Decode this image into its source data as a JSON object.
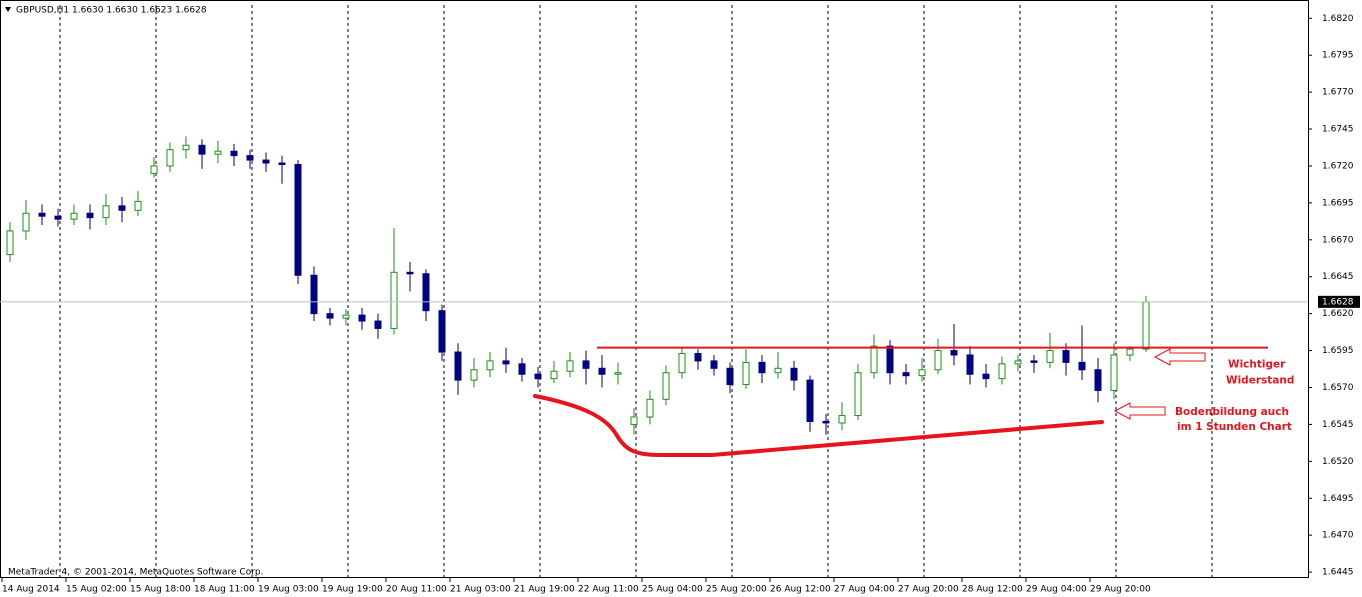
{
  "chart_data": {
    "type": "candlestick",
    "title": "GBPUSD,H1  1.6630 1.6630 1.6623 1.6628",
    "footer": "MetaTrader 4, © 2001-2014, MetaQuotes Software Corp.",
    "categories": [
      "14 Aug 2014",
      null,
      null,
      null,
      "15 Aug 02:00",
      null,
      null,
      null,
      "15 Aug 18:00",
      null,
      null,
      null,
      "18 Aug 11:00",
      null,
      null,
      null,
      "19 Aug 03:00",
      null,
      null,
      null,
      "19 Aug 19:00",
      null,
      null,
      null,
      "20 Aug 11:00",
      null,
      null,
      null,
      "21 Aug 03:00",
      null,
      null,
      null,
      "21 Aug 19:00",
      null,
      null,
      null,
      "22 Aug 11:00",
      null,
      null,
      null,
      "25 Aug 04:00",
      null,
      null,
      null,
      "25 Aug 20:00",
      null,
      null,
      null,
      "26 Aug 12:00",
      null,
      null,
      null,
      "27 Aug 04:00",
      null,
      null,
      null,
      "27 Aug 20:00",
      null,
      null,
      null,
      "28 Aug 12:00",
      null,
      null,
      null,
      "29 Aug 04:00",
      null,
      null,
      null,
      "29 Aug 20:00",
      null,
      null,
      null
    ],
    "open": [
      1.666,
      1.6676,
      1.6688,
      1.6686,
      1.6684,
      1.6688,
      1.6685,
      1.6693,
      1.669,
      1.6715,
      1.672,
      1.6731,
      1.6734,
      1.6728,
      1.673,
      1.6727,
      1.6724,
      1.6722,
      1.6721,
      1.6646,
      1.662,
      1.6617,
      1.6619,
      1.6615,
      1.661,
      1.6648,
      1.6647,
      1.6622,
      1.6594,
      1.6575,
      1.6582,
      1.6588,
      1.6586,
      1.6579,
      1.6576,
      1.6581,
      1.6588,
      1.6583,
      1.6579,
      1.6545,
      1.655,
      1.6562,
      1.658,
      1.6593,
      1.6588,
      1.6583,
      1.6572,
      1.6587,
      1.658,
      1.6583,
      1.6575,
      1.6547,
      1.6546,
      1.6551,
      1.658,
      1.6598,
      1.658,
      1.6578,
      1.6582,
      1.6595,
      1.6592,
      1.6579,
      1.6576,
      1.6586,
      1.6588,
      1.6587,
      1.6595,
      1.6587,
      1.6582,
      1.6568,
      1.6592,
      1.6596
    ],
    "high": [
      1.6682,
      1.6697,
      1.6694,
      1.6691,
      1.6694,
      1.6694,
      1.6701,
      1.6699,
      1.6703,
      1.6726,
      1.6736,
      1.674,
      1.6738,
      1.6737,
      1.6735,
      1.6731,
      1.6729,
      1.6727,
      1.6724,
      1.6652,
      1.6624,
      1.6623,
      1.6624,
      1.662,
      1.6678,
      1.6655,
      1.665,
      1.6626,
      1.66,
      1.659,
      1.6594,
      1.6597,
      1.659,
      1.6584,
      1.6588,
      1.6594,
      1.6595,
      1.6592,
      1.6587,
      1.6556,
      1.6568,
      1.6585,
      1.6597,
      1.6596,
      1.6592,
      1.6587,
      1.6596,
      1.6592,
      1.6594,
      1.6588,
      1.6578,
      1.6552,
      1.656,
      1.6586,
      1.6606,
      1.6602,
      1.6586,
      1.659,
      1.6603,
      1.6613,
      1.6598,
      1.6586,
      1.6591,
      1.6592,
      1.6592,
      1.6607,
      1.66,
      1.6612,
      1.659,
      1.66,
      1.6598,
      1.6632
    ],
    "low": [
      1.6655,
      1.667,
      1.668,
      1.6679,
      1.668,
      1.6677,
      1.668,
      1.6682,
      1.6686,
      1.6712,
      1.6716,
      1.6725,
      1.6718,
      1.6722,
      1.672,
      1.6718,
      1.6716,
      1.6708,
      1.664,
      1.6615,
      1.6612,
      1.6612,
      1.6609,
      1.6603,
      1.6606,
      1.6635,
      1.6615,
      1.6588,
      1.6565,
      1.657,
      1.6577,
      1.658,
      1.6574,
      1.657,
      1.6573,
      1.6577,
      1.6572,
      1.657,
      1.6572,
      1.6538,
      1.6545,
      1.6558,
      1.6576,
      1.6582,
      1.6578,
      1.6566,
      1.6569,
      1.6573,
      1.6576,
      1.6568,
      1.654,
      1.6538,
      1.6541,
      1.6548,
      1.6576,
      1.6572,
      1.6572,
      1.6574,
      1.6579,
      1.6585,
      1.6572,
      1.657,
      1.6572,
      1.6581,
      1.658,
      1.6583,
      1.6578,
      1.6575,
      1.656,
      1.6562,
      1.6588,
      1.6594
    ],
    "close": [
      1.6676,
      1.6688,
      1.6686,
      1.6684,
      1.6688,
      1.6685,
      1.6693,
      1.669,
      1.6696,
      1.672,
      1.6731,
      1.6734,
      1.6728,
      1.673,
      1.6727,
      1.6724,
      1.6722,
      1.6721,
      1.6646,
      1.662,
      1.6617,
      1.6619,
      1.6615,
      1.661,
      1.6648,
      1.6647,
      1.6622,
      1.6594,
      1.6575,
      1.6582,
      1.6588,
      1.6586,
      1.6579,
      1.6576,
      1.6581,
      1.6588,
      1.6583,
      1.6579,
      1.658,
      1.655,
      1.6562,
      1.658,
      1.6593,
      1.6588,
      1.6583,
      1.6572,
      1.6587,
      1.658,
      1.6583,
      1.6575,
      1.6547,
      1.6546,
      1.6551,
      1.658,
      1.6598,
      1.658,
      1.6578,
      1.6582,
      1.6595,
      1.6592,
      1.6579,
      1.6576,
      1.6586,
      1.6588,
      1.6587,
      1.6595,
      1.6587,
      1.6582,
      1.6568,
      1.6592,
      1.6596,
      1.6628
    ],
    "up_color": "#1f8f1f",
    "down_color": "#000080",
    "current_price": 1.6628,
    "ylim": [
      1.6441,
      1.6829
    ],
    "yticks": [
      {
        "value": 1.682,
        "label": "1.6820"
      },
      1.6795,
      {
        "value": 1.677,
        "label": "1.6770"
      },
      1.6745,
      {
        "value": 1.672,
        "label": "1.6720"
      },
      1.6695,
      {
        "value": 1.667,
        "label": "1.6670"
      },
      1.6645,
      {
        "value": 1.662,
        "label": "1.6620"
      },
      1.6595,
      {
        "value": 1.657,
        "label": "1.6570"
      },
      1.6545,
      {
        "value": 1.652,
        "label": "1.6520"
      },
      1.6495,
      {
        "value": 1.647,
        "label": "1.6470"
      },
      1.6445
    ],
    "vertical_grid": true,
    "annotations": [
      {
        "text": [
          "Wichtiger",
          "Widerstand"
        ],
        "level": 1.6597,
        "color": "#e8141c"
      },
      {
        "text": [
          "Bodenbildung auch",
          "im 1 Stunden Chart"
        ],
        "color": "#e8141c"
      }
    ]
  }
}
